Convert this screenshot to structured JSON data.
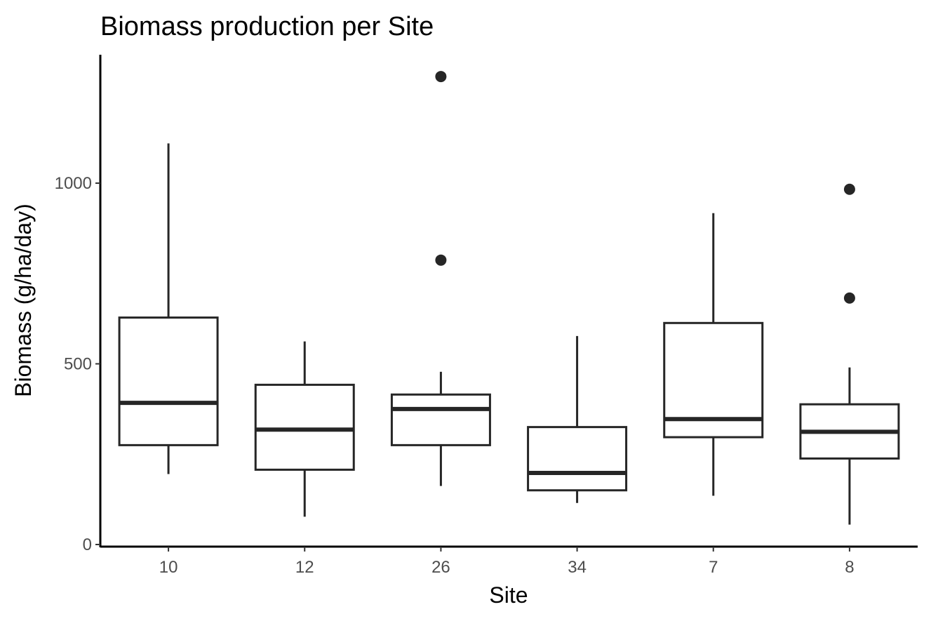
{
  "chart_data": {
    "type": "boxplot",
    "title": "Biomass production per Site",
    "xlabel": "Site",
    "ylabel": "Biomass (g/ha/day)",
    "ylim": [
      -5,
      1310
    ],
    "yticks": [
      0,
      500,
      1000
    ],
    "grid": false,
    "legend": "none",
    "categories": [
      "10",
      "12",
      "26",
      "34",
      "7",
      "8"
    ],
    "boxes": [
      {
        "site": "10",
        "whisker_low": 195,
        "q1": 275,
        "median": 392,
        "q3": 628,
        "whisker_high": 1110,
        "outliers": []
      },
      {
        "site": "12",
        "whisker_low": 77,
        "q1": 207,
        "median": 318,
        "q3": 442,
        "whisker_high": 562,
        "outliers": []
      },
      {
        "site": "26",
        "whisker_low": 162,
        "q1": 275,
        "median": 375,
        "q3": 415,
        "whisker_high": 478,
        "outliers": [
          787,
          1295
        ]
      },
      {
        "site": "34",
        "whisker_low": 115,
        "q1": 150,
        "median": 198,
        "q3": 325,
        "whisker_high": 577,
        "outliers": []
      },
      {
        "site": "7",
        "whisker_low": 135,
        "q1": 297,
        "median": 347,
        "q3": 613,
        "whisker_high": 917,
        "outliers": []
      },
      {
        "site": "8",
        "whisker_low": 55,
        "q1": 238,
        "median": 312,
        "q3": 388,
        "whisker_high": 490,
        "outliers": [
          682,
          983
        ]
      }
    ],
    "colors": {
      "box_line": "#262626",
      "box_fill": "#ffffff",
      "axis": "#000000",
      "tick_text": "#4d4d4d"
    }
  }
}
